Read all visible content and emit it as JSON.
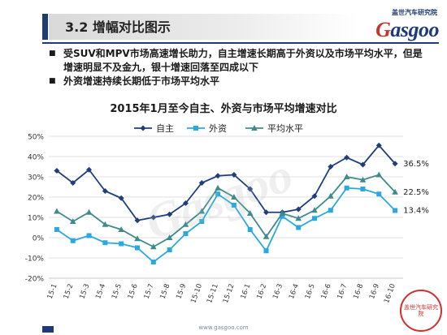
{
  "header": {
    "title": "3.2   增幅对比图示"
  },
  "brand": {
    "cn": "盖世汽车研究院",
    "en_first": "G",
    "en_rest": "asgoo"
  },
  "bullets": [
    "受SUV和MPV市场高速增长助力，自主增速长期高于外资以及市场平均水平，但是增速明显不及金九，银十增速回落至四成以下",
    "外资增速持续长期低于市场平均水平"
  ],
  "footer": {
    "url": "www.gasgoo.com",
    "stamp": "盖世汽车研究院"
  },
  "colors": {
    "zizhu": "#1f3f7a",
    "waizi": "#29a9e0",
    "pingjun": "#3e8b8b",
    "header_accent": "#1f3b73"
  },
  "chart_data": {
    "type": "line",
    "title": "2015年1月至今自主、外资与市场平均增速对比",
    "categories": [
      "15-1",
      "15-2",
      "15-3",
      "15-4",
      "15-5",
      "15-6",
      "15-7",
      "15-8",
      "15-9",
      "15-10",
      "15-11",
      "15-12",
      "16-1",
      "16-2",
      "16-3",
      "16-4",
      "16-5",
      "16-6",
      "16-7",
      "16-8",
      "16-9",
      "16-10"
    ],
    "series": [
      {
        "name": "自主",
        "color": "#1f3f7a",
        "marker": "diamond",
        "values": [
          33,
          27,
          33.5,
          23,
          19.5,
          8.5,
          10,
          11.5,
          17,
          27,
          30.5,
          31,
          24,
          12.5,
          12.5,
          14,
          20.5,
          35,
          39.5,
          36,
          45.5,
          36.5
        ]
      },
      {
        "name": "外资",
        "color": "#29a9e0",
        "marker": "square",
        "values": [
          4,
          -1.5,
          1,
          -2.5,
          -3,
          -5,
          -12,
          -6,
          2,
          8,
          21.5,
          16,
          4,
          -6.5,
          10.5,
          5,
          9.5,
          13.5,
          24.5,
          24,
          21.5,
          13.4
        ]
      },
      {
        "name": "平均水平",
        "color": "#3e8b8b",
        "marker": "triangle",
        "values": [
          13,
          8,
          12.5,
          6.5,
          4,
          -0.5,
          -4.5,
          0,
          6.5,
          13,
          24.5,
          20,
          12,
          0.5,
          12,
          9.5,
          13.5,
          20.5,
          30,
          28.5,
          31,
          22.5
        ]
      }
    ],
    "end_labels": [
      "36.5%",
      "22.5%",
      "13.4%"
    ],
    "ylim": [
      -20,
      50
    ],
    "yticks": [
      -20,
      -10,
      0,
      10,
      20,
      30,
      40,
      50
    ],
    "ytick_labels": [
      "-20%",
      "-10%",
      "0%",
      "10%",
      "20%",
      "30%",
      "40%",
      "50%"
    ],
    "grid": true,
    "legend_position": "top-center"
  }
}
